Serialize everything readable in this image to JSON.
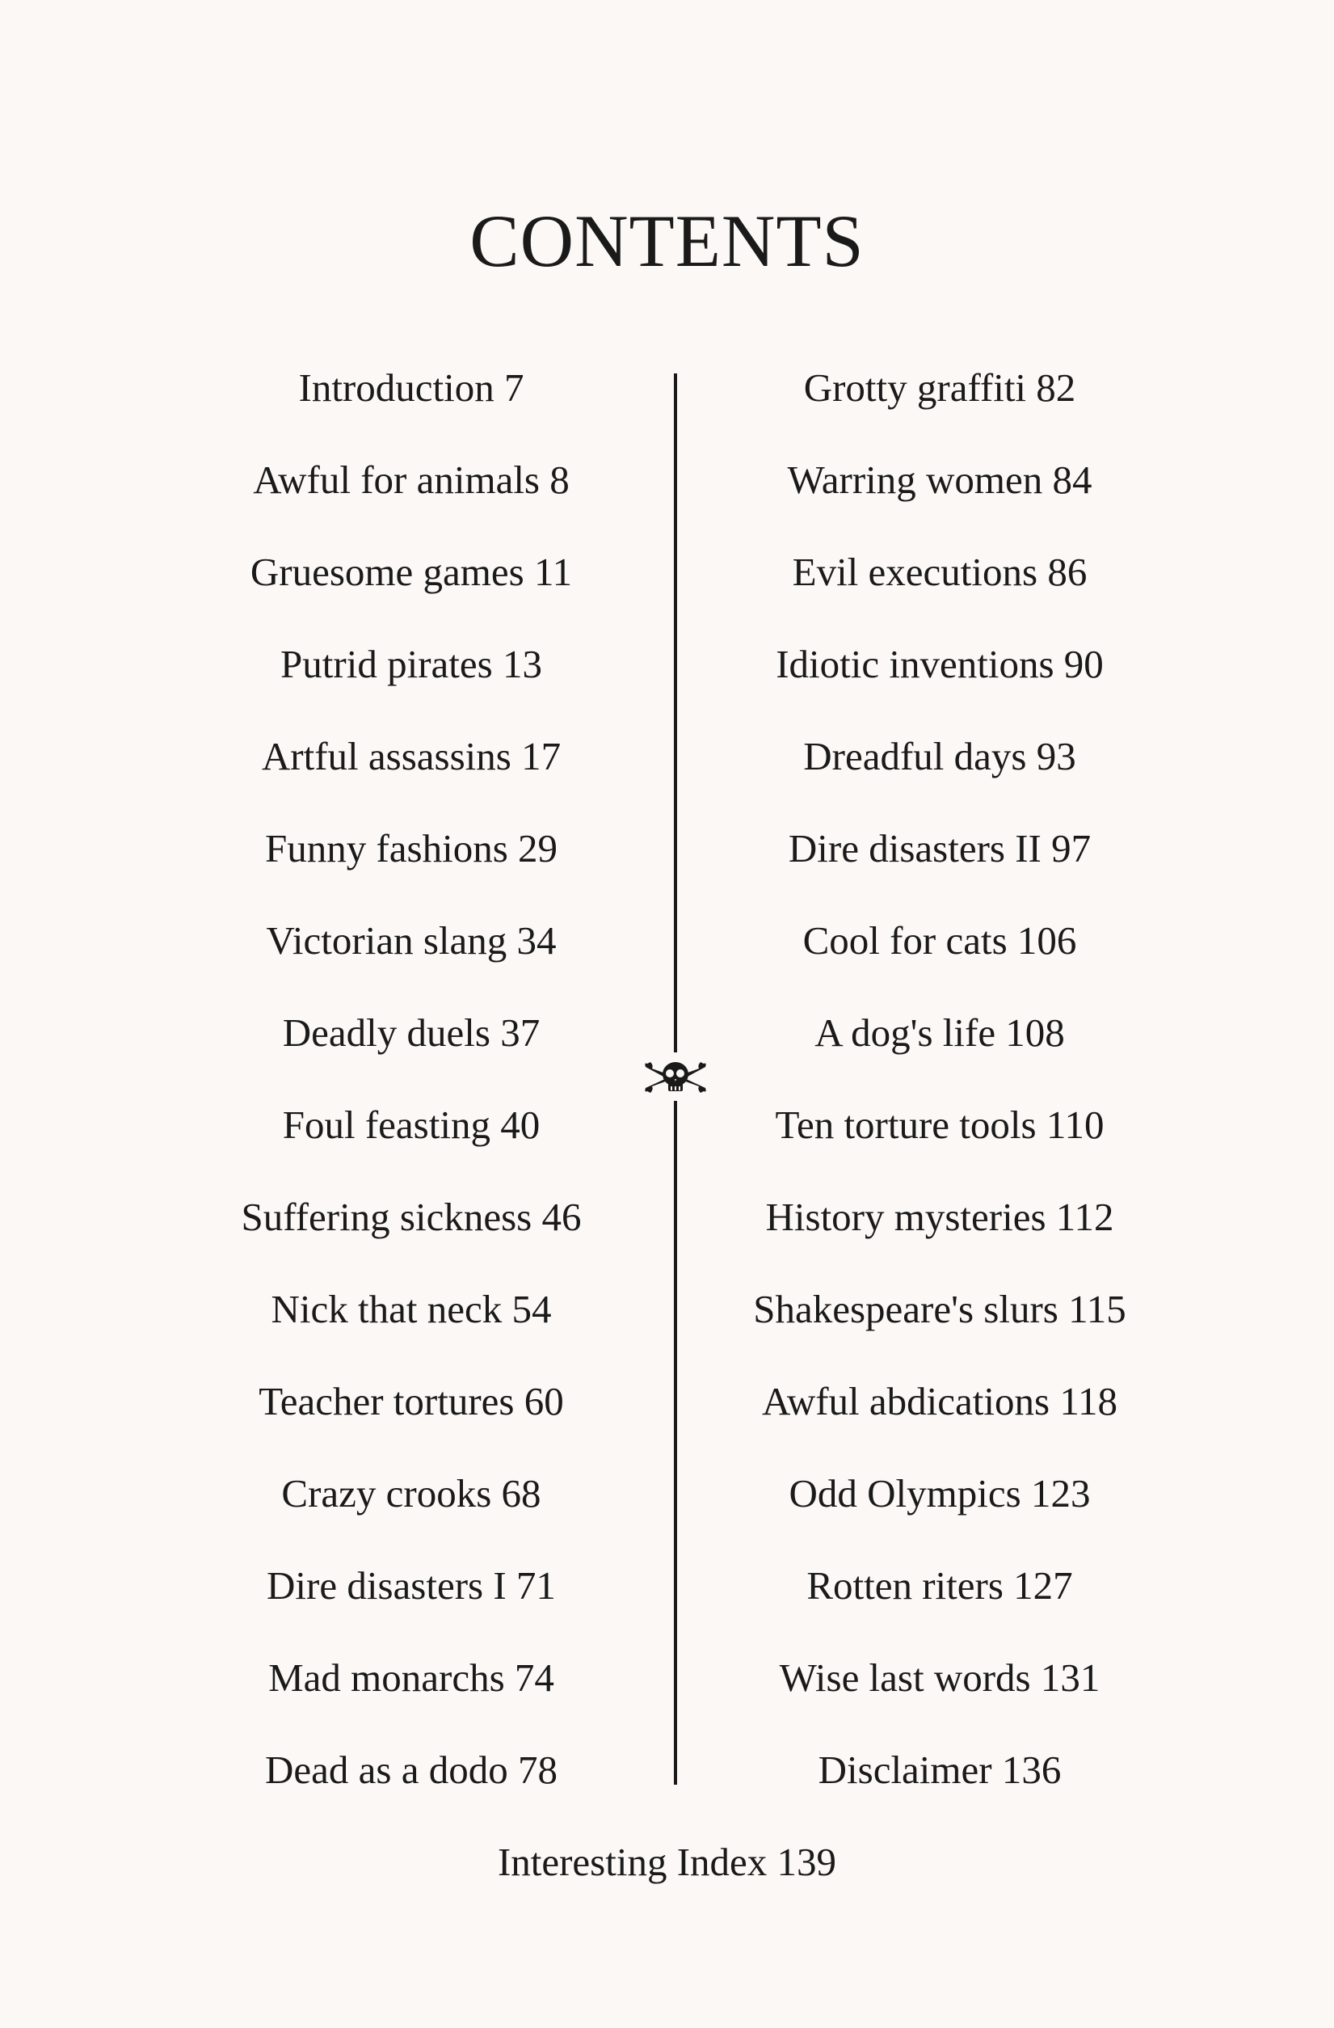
{
  "title": "CONTENTS",
  "left_column": [
    {
      "label": "Introduction 7"
    },
    {
      "label": "Awful for animals 8"
    },
    {
      "label": "Gruesome games 11"
    },
    {
      "label": "Putrid pirates 13"
    },
    {
      "label": "Artful assassins 17"
    },
    {
      "label": "Funny fashions 29"
    },
    {
      "label": "Victorian slang 34"
    },
    {
      "label": "Deadly duels 37"
    },
    {
      "label": "Foul feasting 40"
    },
    {
      "label": "Suffering sickness 46"
    },
    {
      "label": "Nick that neck 54"
    },
    {
      "label": "Teacher tortures 60"
    },
    {
      "label": "Crazy crooks 68"
    },
    {
      "label": "Dire disasters I 71"
    },
    {
      "label": "Mad monarchs 74"
    },
    {
      "label": "Dead as a dodo 78"
    }
  ],
  "right_column": [
    {
      "label": "Grotty graffiti 82"
    },
    {
      "label": "Warring women 84"
    },
    {
      "label": "Evil executions 86"
    },
    {
      "label": "Idiotic inventions 90"
    },
    {
      "label": "Dreadful days 93"
    },
    {
      "label": "Dire disasters II 97"
    },
    {
      "label": "Cool for cats 106"
    },
    {
      "label": "A dog's life 108"
    },
    {
      "label": "Ten torture tools 110"
    },
    {
      "label": "History mysteries 112"
    },
    {
      "label": "Shakespeare's slurs 115"
    },
    {
      "label": "Awful abdications 118"
    },
    {
      "label": "Odd Olympics 123"
    },
    {
      "label": "Rotten riters 127"
    },
    {
      "label": "Wise last words 131"
    },
    {
      "label": "Disclaimer 136"
    }
  ],
  "footer_entry": "Interesting Index 139",
  "divider_ornament": "skull-crossbones-icon"
}
